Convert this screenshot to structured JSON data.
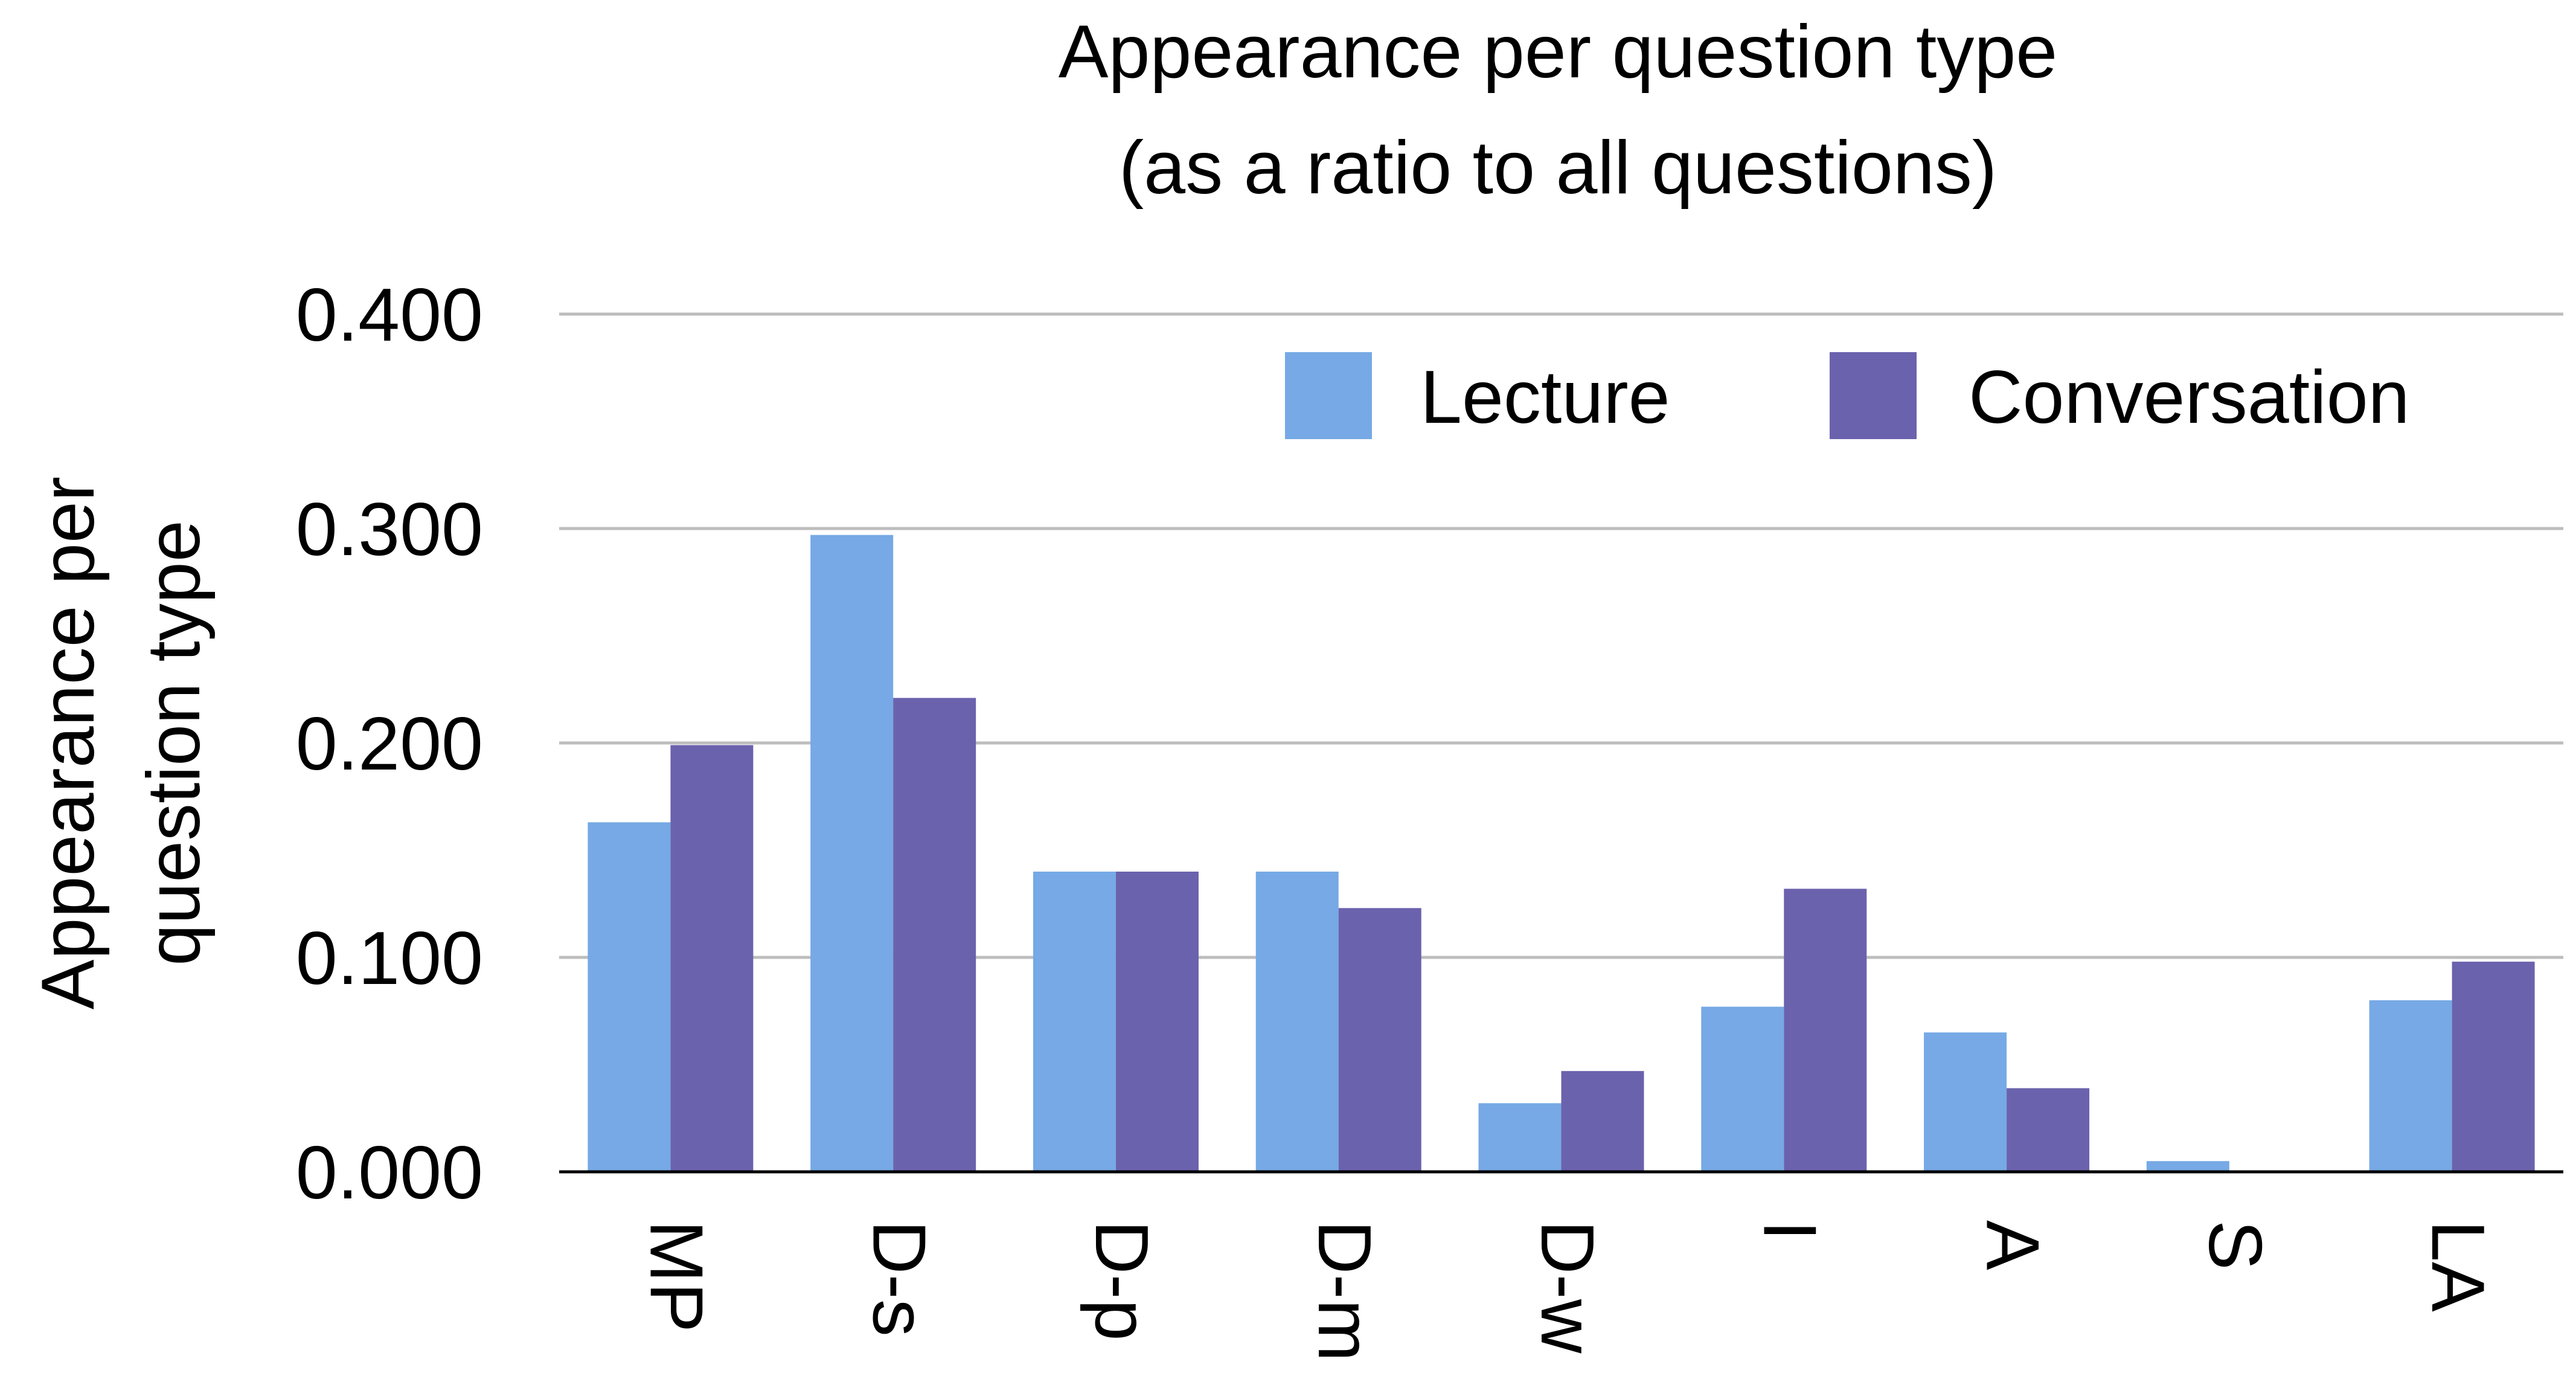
{
  "chart_data": {
    "type": "bar",
    "title_lines": [
      "Appearance per question type",
      "(as a ratio to all questions)"
    ],
    "ylabel_lines": [
      "Appearance per",
      "question type"
    ],
    "xlabel": "",
    "categories": [
      "MP",
      "D-s",
      "D-p",
      "D-m",
      "D-w",
      "I",
      "A",
      "S",
      "LA"
    ],
    "series": [
      {
        "name": "Lecture",
        "color": "#76A9E5",
        "values": [
          0.163,
          0.297,
          0.14,
          0.14,
          0.032,
          0.077,
          0.065,
          0.005,
          0.08
        ]
      },
      {
        "name": "Conversation",
        "color": "#6A62AD",
        "values": [
          0.199,
          0.221,
          0.14,
          0.123,
          0.047,
          0.132,
          0.039,
          0.0,
          0.098
        ]
      }
    ],
    "yticks": [
      "0.000",
      "0.100",
      "0.200",
      "0.300",
      "0.400"
    ],
    "ylim": [
      0,
      0.4
    ],
    "grid": true,
    "legend_position": "top-right",
    "x_tick_rotation": "vertical"
  }
}
